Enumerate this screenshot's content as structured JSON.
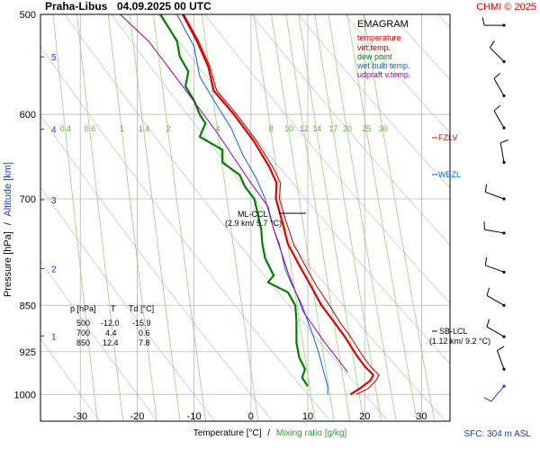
{
  "header": {
    "station": "Praha-Libus",
    "datetime": "04.09.2025 00 UTC",
    "copyright": "CHMI © 2025"
  },
  "legend": {
    "title": "EMAGRAM",
    "items": [
      {
        "label": "temperature",
        "color": "#e00000"
      },
      {
        "label": "virt.temp.",
        "color": "#b00000"
      },
      {
        "label": "dew point",
        "color": "#008000"
      },
      {
        "label": "wet bulb temp.",
        "color": "#1060d0"
      },
      {
        "label": "udpraft v.temp.",
        "color": "#a000a0"
      }
    ]
  },
  "axes": {
    "ylabel_pressure": "Pressure [hPa]",
    "ylabel_sep": "/",
    "ylabel_altitude": "Altitude [km]",
    "xlabel_temp": "Temperature [°C]",
    "xlabel_sep": "/",
    "xlabel_mix": "Mixing ratio [g/kg]",
    "pressure_ticks": [
      500,
      600,
      700,
      850,
      925,
      1000
    ],
    "temp_ticks": [
      -30,
      -20,
      -10,
      0,
      10,
      20,
      30
    ],
    "altitude_ticks": [
      1,
      2,
      3,
      4,
      5
    ],
    "mixing_ratio_labels": [
      "0.4",
      "0.6",
      "1",
      "1.4",
      "2",
      "4",
      "8",
      "10",
      "12",
      "14",
      "17",
      "20",
      "25",
      "30"
    ]
  },
  "levels": {
    "fzlv": "FZLV",
    "wbzl": "WBZL",
    "ml_ccl": "ML-CCL",
    "ml_ccl_value": "(2.9 km/ 5.7 °C)",
    "sb_lcl": "SB-LCL",
    "sb_lcl_value": "(1.12 km/ 9.2 °C)"
  },
  "table": {
    "headers": [
      "p [hPa]",
      "T",
      "Td [°C]"
    ],
    "rows": [
      [
        "500",
        "-12.0",
        "-15.9"
      ],
      [
        "700",
        "4.4",
        "0.6"
      ],
      [
        "850",
        "12.4",
        "7.8"
      ]
    ]
  },
  "footer": {
    "sfc": "SFC: 304 m ASL"
  },
  "chart_data": {
    "type": "line",
    "title": "EMAGRAM",
    "xlabel": "Temperature [°C] / Mixing ratio [g/kg]",
    "ylabel": "Pressure [hPa] / Altitude [km]",
    "xlim": [
      -37,
      35
    ],
    "ylim": [
      1050,
      500
    ],
    "y_scale": "log",
    "grid": true,
    "series": [
      {
        "name": "temperature",
        "color": "#e00000",
        "points": [
          [
            17.5,
            1000
          ],
          [
            19,
            990
          ],
          [
            21,
            975
          ],
          [
            21.5,
            965
          ],
          [
            20,
            950
          ],
          [
            18.5,
            930
          ],
          [
            16.5,
            900
          ],
          [
            14.5,
            875
          ],
          [
            12.4,
            850
          ],
          [
            10.5,
            820
          ],
          [
            8.5,
            790
          ],
          [
            6.5,
            760
          ],
          [
            5.5,
            730
          ],
          [
            4.4,
            700
          ],
          [
            4.5,
            680
          ],
          [
            3.2,
            660
          ],
          [
            0.5,
            630
          ],
          [
            -3,
            600
          ],
          [
            -6.5,
            575
          ],
          [
            -7.5,
            550
          ],
          [
            -9.5,
            525
          ],
          [
            -12,
            500
          ]
        ]
      },
      {
        "name": "virt.temp.",
        "color": "#b00000",
        "points": [
          [
            18.5,
            1000
          ],
          [
            20.5,
            990
          ],
          [
            22,
            975
          ],
          [
            22.5,
            965
          ],
          [
            21,
            950
          ],
          [
            19.5,
            930
          ],
          [
            17.5,
            900
          ],
          [
            15.5,
            875
          ],
          [
            13.8,
            850
          ],
          [
            11.5,
            820
          ],
          [
            9.5,
            790
          ],
          [
            7.5,
            760
          ],
          [
            6.2,
            730
          ],
          [
            5,
            700
          ],
          [
            5.2,
            680
          ],
          [
            3.8,
            660
          ],
          [
            1,
            630
          ],
          [
            -2.5,
            600
          ],
          [
            -6,
            575
          ],
          [
            -7.2,
            550
          ],
          [
            -9.2,
            525
          ],
          [
            -11.8,
            500
          ]
        ]
      },
      {
        "name": "dew point",
        "color": "#008000",
        "points": [
          [
            10,
            985
          ],
          [
            9,
            970
          ],
          [
            9.5,
            955
          ],
          [
            8.5,
            935
          ],
          [
            8,
            910
          ],
          [
            8,
            875
          ],
          [
            7.8,
            850
          ],
          [
            6.5,
            830
          ],
          [
            3,
            815
          ],
          [
            4,
            805
          ],
          [
            2.5,
            780
          ],
          [
            2,
            760
          ],
          [
            1.8,
            740
          ],
          [
            0.6,
            700
          ],
          [
            -1,
            685
          ],
          [
            -2,
            670
          ],
          [
            -5,
            655
          ],
          [
            -5,
            640
          ],
          [
            -9,
            625
          ],
          [
            -8,
            610
          ],
          [
            -9,
            600
          ],
          [
            -10,
            585
          ],
          [
            -11.5,
            570
          ],
          [
            -11,
            555
          ],
          [
            -12.5,
            540
          ],
          [
            -13,
            525
          ],
          [
            -14.5,
            512
          ],
          [
            -15.9,
            500
          ]
        ]
      },
      {
        "name": "wet bulb temp.",
        "color": "#1060d0",
        "points": [
          [
            13.5,
            1000
          ],
          [
            13.5,
            985
          ],
          [
            12.8,
            960
          ],
          [
            12,
            930
          ],
          [
            11,
            900
          ],
          [
            10,
            875
          ],
          [
            9,
            850
          ],
          [
            7,
            815
          ],
          [
            6,
            795
          ],
          [
            5,
            760
          ],
          [
            4,
            740
          ],
          [
            2.5,
            700
          ],
          [
            1,
            675
          ],
          [
            -1.5,
            645
          ],
          [
            -3.5,
            615
          ],
          [
            -5,
            600
          ],
          [
            -7.5,
            575
          ],
          [
            -9,
            560
          ],
          [
            -10,
            530
          ],
          [
            -11.5,
            515
          ],
          [
            -13,
            500
          ]
        ]
      },
      {
        "name": "udpraft v.temp.",
        "color": "#a000a0",
        "points": [
          [
            17,
            960
          ],
          [
            13,
            910
          ],
          [
            9.2,
            860
          ],
          [
            6.5,
            800
          ],
          [
            4,
            740
          ],
          [
            3,
            710
          ],
          [
            0,
            680
          ],
          [
            -6,
            620
          ],
          [
            -12,
            570
          ],
          [
            -18,
            525
          ],
          [
            -23,
            500
          ]
        ]
      }
    ],
    "wind_barbs": [
      {
        "pressure": 510,
        "direction_deg": 270,
        "speed_kt": 10
      },
      {
        "pressure": 545,
        "direction_deg": 315,
        "speed_kt": 10
      },
      {
        "pressure": 580,
        "direction_deg": 330,
        "speed_kt": 10
      },
      {
        "pressure": 615,
        "direction_deg": 330,
        "speed_kt": 10
      },
      {
        "pressure": 655,
        "direction_deg": 350,
        "speed_kt": 10
      },
      {
        "pressure": 700,
        "direction_deg": 290,
        "speed_kt": 10
      },
      {
        "pressure": 745,
        "direction_deg": 280,
        "speed_kt": 10
      },
      {
        "pressure": 800,
        "direction_deg": 290,
        "speed_kt": 10
      },
      {
        "pressure": 850,
        "direction_deg": 300,
        "speed_kt": 10
      },
      {
        "pressure": 900,
        "direction_deg": 300,
        "speed_kt": 10
      },
      {
        "pressure": 955,
        "direction_deg": 340,
        "speed_kt": 10
      },
      {
        "pressure": 985,
        "direction_deg": 220,
        "speed_kt": 5
      }
    ]
  }
}
